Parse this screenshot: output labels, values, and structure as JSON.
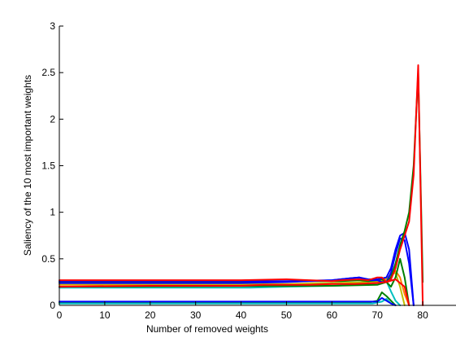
{
  "chart_data": {
    "type": "line",
    "xlabel": "Number of removed weights",
    "ylabel": "Saliency of the 10 most important weights",
    "xlim": [
      0,
      90
    ],
    "ylim": [
      0,
      3
    ],
    "x_ticks": [
      0,
      10,
      20,
      30,
      40,
      50,
      60,
      70,
      80
    ],
    "y_ticks": [
      0,
      0.5,
      1,
      1.5,
      2,
      2.5,
      3
    ],
    "x_tick_labels": [
      "0",
      "10",
      "20",
      "30",
      "40",
      "50",
      "60",
      "70",
      "80"
    ],
    "y_tick_labels": [
      "0",
      "0.5",
      "1",
      "1.5",
      "2",
      "2.5",
      "3"
    ],
    "grid": false,
    "series": [
      {
        "color": "#008000",
        "x": [
          0,
          60,
          68,
          70,
          71,
          72,
          73,
          74
        ],
        "y": [
          0.03,
          0.03,
          0.03,
          0.05,
          0.14,
          0.1,
          0.05,
          0.0
        ]
      },
      {
        "color": "#00bfbf",
        "x": [
          0,
          60,
          69,
          71,
          72,
          73,
          74
        ],
        "y": [
          0.02,
          0.02,
          0.02,
          0.04,
          0.07,
          0.02,
          0.0
        ]
      },
      {
        "color": "#0000ff",
        "x": [
          0,
          66,
          70,
          71,
          72,
          73,
          74
        ],
        "y": [
          0.04,
          0.04,
          0.04,
          0.08,
          0.05,
          0.02,
          0.0
        ]
      },
      {
        "color": "#00bfbf",
        "x": [
          0,
          42,
          50,
          60,
          66,
          70,
          72,
          73,
          74,
          75
        ],
        "y": [
          0.19,
          0.19,
          0.2,
          0.21,
          0.22,
          0.24,
          0.26,
          0.15,
          0.05,
          0.0
        ]
      },
      {
        "color": "#ff8000",
        "x": [
          0,
          50,
          60,
          68,
          71,
          72,
          73,
          74,
          75,
          76,
          77
        ],
        "y": [
          0.22,
          0.22,
          0.23,
          0.24,
          0.26,
          0.28,
          0.32,
          0.37,
          0.3,
          0.12,
          0.0
        ]
      },
      {
        "color": "#bfbf00",
        "x": [
          0,
          50,
          60,
          68,
          71,
          72,
          73,
          74,
          75,
          76
        ],
        "y": [
          0.23,
          0.23,
          0.24,
          0.25,
          0.27,
          0.29,
          0.33,
          0.35,
          0.2,
          0.0
        ]
      },
      {
        "color": "#008000",
        "x": [
          0,
          45,
          55,
          62,
          66,
          68,
          70,
          71,
          72,
          73,
          74,
          75,
          76,
          77
        ],
        "y": [
          0.25,
          0.25,
          0.26,
          0.26,
          0.27,
          0.26,
          0.27,
          0.28,
          0.25,
          0.2,
          0.3,
          0.5,
          0.3,
          0.0
        ]
      },
      {
        "color": "#0000ff",
        "x": [
          0,
          40,
          50,
          60,
          64,
          66,
          68,
          70,
          71,
          72,
          73,
          74,
          75,
          76,
          77,
          78
        ],
        "y": [
          0.24,
          0.24,
          0.25,
          0.27,
          0.29,
          0.3,
          0.27,
          0.27,
          0.25,
          0.25,
          0.35,
          0.55,
          0.72,
          0.7,
          0.45,
          0.0
        ]
      },
      {
        "color": "#0000ff",
        "x": [
          0,
          50,
          60,
          64,
          66,
          68,
          70,
          72,
          73,
          74,
          75,
          76,
          77,
          78
        ],
        "y": [
          0.26,
          0.26,
          0.27,
          0.29,
          0.3,
          0.28,
          0.28,
          0.3,
          0.4,
          0.6,
          0.75,
          0.78,
          0.6,
          0.0
        ]
      },
      {
        "color": "#008000",
        "x": [
          0,
          60,
          70,
          72,
          73,
          74,
          75,
          76,
          77,
          78,
          79,
          80
        ],
        "y": [
          0.2,
          0.21,
          0.22,
          0.25,
          0.3,
          0.45,
          0.65,
          0.8,
          1.0,
          1.5,
          2.5,
          0.25
        ]
      },
      {
        "color": "#ff0000",
        "x": [
          0,
          40,
          50,
          55,
          60,
          62,
          66,
          68,
          70,
          71,
          72,
          73,
          74,
          75,
          76,
          77,
          78,
          79,
          80
        ],
        "y": [
          0.27,
          0.27,
          0.28,
          0.27,
          0.26,
          0.27,
          0.28,
          0.27,
          0.3,
          0.3,
          0.25,
          0.28,
          0.4,
          0.6,
          0.75,
          0.9,
          1.4,
          2.58,
          0.0
        ]
      },
      {
        "color": "#ff0000",
        "x": [
          0,
          20,
          40,
          45,
          50,
          55,
          60,
          65,
          70,
          72,
          74,
          76,
          77
        ],
        "y": [
          0.2,
          0.21,
          0.21,
          0.22,
          0.22,
          0.22,
          0.23,
          0.23,
          0.24,
          0.25,
          0.28,
          0.2,
          0.0
        ]
      }
    ]
  }
}
